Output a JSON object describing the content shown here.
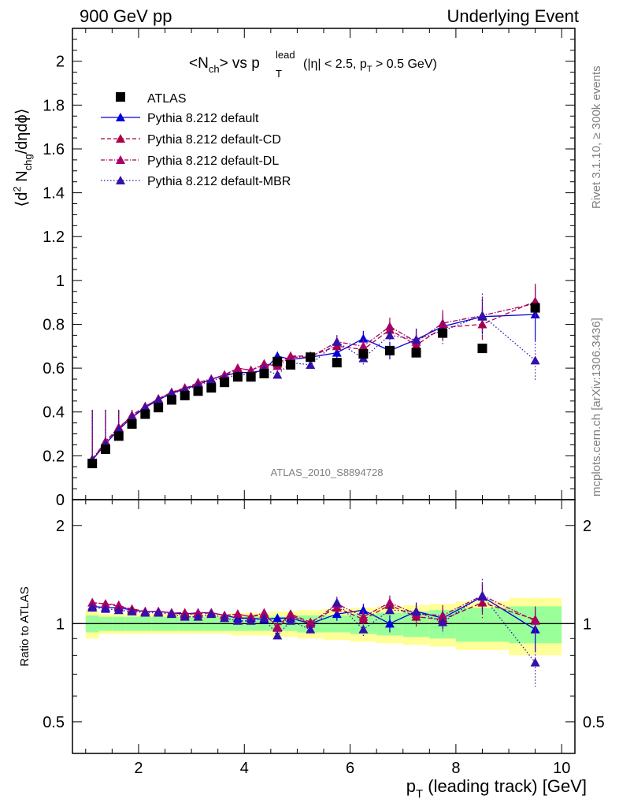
{
  "header": {
    "left": "900 GeV pp",
    "right": "Underlying Event"
  },
  "side_notes": {
    "rivet": "Rivet 3.1.10, ≥ 300k events",
    "mcplots": "mcplots.cern.ch [arXiv:1306.3436]"
  },
  "plot_title": {
    "n": "<N",
    "ch": "ch",
    "vs": "> vs p",
    "sup": "lead",
    "sub": "T",
    "cut1": "(|η| < 2.5, p",
    "cut_sub": "T",
    "cut2": " > 0.5 GeV)"
  },
  "ylabel_main": {
    "a": "⟨d",
    "b": "2",
    "c": " N",
    "d": "chg",
    "e": "/dηdϕ⟩"
  },
  "ylabel_ratio": "Ratio to ATLAS",
  "xlabel": {
    "p": "p",
    "sub": "T",
    "rest": " (leading track) [GeV]"
  },
  "analysis_tag": "ATLAS_2010_S8894728",
  "colors": {
    "data": "#000000",
    "default": "#0000dd",
    "cd": "#aa0044",
    "dl": "#aa0066",
    "mbr": "#3311aa",
    "band_inner": "#99ff99",
    "band_outer": "#ffff99"
  },
  "chart_data": [
    {
      "type": "scatter",
      "panel": "main",
      "xlim": [
        0.75,
        10.25
      ],
      "ylim": [
        0,
        2.15
      ],
      "xticks": [
        2,
        4,
        6,
        8,
        10
      ],
      "yticks": [
        0,
        0.2,
        0.4,
        0.6,
        0.8,
        1,
        1.2,
        1.4,
        1.6,
        1.8,
        2
      ],
      "ytick_labels": [
        "0",
        "0.2",
        "0.4",
        "0.6",
        "0.8",
        "1",
        "1.2",
        "1.4",
        "1.6",
        "1.8",
        "2"
      ],
      "x": [
        1.125,
        1.375,
        1.625,
        1.875,
        2.125,
        2.375,
        2.625,
        2.875,
        3.125,
        3.375,
        3.625,
        3.875,
        4.125,
        4.375,
        4.625,
        4.875,
        5.25,
        5.75,
        6.25,
        6.75,
        7.25,
        7.75,
        8.5,
        9.5
      ],
      "series": [
        {
          "name": "ATLAS",
          "style": "data",
          "legend": "ATLAS",
          "values": [
            0.165,
            0.23,
            0.29,
            0.345,
            0.39,
            0.42,
            0.455,
            0.475,
            0.495,
            0.51,
            0.535,
            0.56,
            0.56,
            0.575,
            0.63,
            0.615,
            0.65,
            0.625,
            0.665,
            0.68,
            0.67,
            0.76,
            0.69,
            0.875
          ]
        },
        {
          "name": "default",
          "style": "default",
          "legend": "Pythia 8.212 default",
          "values": [
            0.18,
            0.255,
            0.32,
            0.375,
            0.42,
            0.455,
            0.485,
            0.505,
            0.525,
            0.55,
            0.565,
            0.58,
            0.58,
            0.59,
            0.655,
            0.64,
            0.65,
            0.67,
            0.735,
            0.68,
            0.73,
            0.79,
            0.835,
            0.845
          ],
          "errors": [
            0.005,
            0.005,
            0.005,
            0.005,
            0.005,
            0.005,
            0.005,
            0.005,
            0.005,
            0.007,
            0.008,
            0.01,
            0.012,
            0.015,
            0.02,
            0.02,
            0.02,
            0.03,
            0.035,
            0.04,
            0.05,
            0.06,
            0.08,
            0.12
          ]
        },
        {
          "name": "default-CD",
          "style": "cd",
          "legend": "Pythia 8.212 default-CD",
          "values": [
            0.18,
            0.265,
            0.325,
            0.385,
            0.425,
            0.46,
            0.49,
            0.51,
            0.525,
            0.55,
            0.565,
            0.6,
            0.59,
            0.615,
            0.62,
            0.655,
            0.655,
            0.7,
            0.685,
            0.775,
            0.705,
            0.785,
            0.8,
            0.905
          ],
          "errors": [
            0.005,
            0.005,
            0.005,
            0.005,
            0.005,
            0.005,
            0.005,
            0.005,
            0.005,
            0.007,
            0.008,
            0.01,
            0.012,
            0.015,
            0.02,
            0.02,
            0.02,
            0.03,
            0.035,
            0.04,
            0.05,
            0.06,
            0.08,
            0.08
          ]
        },
        {
          "name": "default-DL",
          "style": "dl",
          "legend": "Pythia 8.212 default-DL",
          "values": [
            0.185,
            0.265,
            0.33,
            0.38,
            0.425,
            0.46,
            0.49,
            0.505,
            0.535,
            0.55,
            0.57,
            0.6,
            0.59,
            0.62,
            0.61,
            0.65,
            0.65,
            0.72,
            0.7,
            0.79,
            0.72,
            0.805,
            0.84,
            0.895
          ],
          "errors": [
            0.005,
            0.005,
            0.005,
            0.005,
            0.005,
            0.005,
            0.005,
            0.005,
            0.005,
            0.007,
            0.008,
            0.01,
            0.012,
            0.015,
            0.02,
            0.02,
            0.02,
            0.03,
            0.035,
            0.04,
            0.05,
            0.06,
            0.08,
            0.08
          ]
        },
        {
          "name": "default-MBR",
          "style": "mbr",
          "legend": "Pythia 8.212 default-MBR",
          "values": [
            0.18,
            0.255,
            0.32,
            0.375,
            0.42,
            0.455,
            0.485,
            0.5,
            0.52,
            0.545,
            0.555,
            0.57,
            0.57,
            0.595,
            0.57,
            0.625,
            0.615,
            0.72,
            0.645,
            0.75,
            0.73,
            0.77,
            0.84,
            0.635
          ],
          "errors": [
            0.005,
            0.005,
            0.005,
            0.005,
            0.005,
            0.005,
            0.005,
            0.005,
            0.005,
            0.007,
            0.008,
            0.01,
            0.012,
            0.015,
            0.02,
            0.02,
            0.02,
            0.03,
            0.035,
            0.04,
            0.05,
            0.06,
            0.1,
            0.09
          ]
        }
      ]
    },
    {
      "type": "scatter",
      "panel": "ratio",
      "xlim": [
        0.75,
        10.25
      ],
      "ylim": [
        0.4,
        2.4
      ],
      "yscale": "log",
      "reference": 1,
      "yticks": [
        0.5,
        1,
        2
      ],
      "ytick_labels": [
        "0.5",
        "1",
        "2"
      ],
      "x_edges": [
        1.0,
        1.25,
        1.5,
        1.75,
        2.0,
        2.25,
        2.5,
        2.75,
        3.0,
        3.25,
        3.5,
        3.75,
        4.0,
        4.25,
        4.5,
        4.75,
        5.0,
        5.5,
        6.0,
        6.5,
        7.0,
        7.5,
        8.0,
        9.0,
        10.0
      ],
      "band_inner": [
        0.06,
        0.05,
        0.05,
        0.05,
        0.05,
        0.05,
        0.05,
        0.05,
        0.05,
        0.05,
        0.05,
        0.05,
        0.05,
        0.05,
        0.05,
        0.05,
        0.06,
        0.06,
        0.07,
        0.08,
        0.09,
        0.1,
        0.12,
        0.13
      ],
      "band_outer": [
        0.1,
        0.07,
        0.07,
        0.07,
        0.07,
        0.07,
        0.07,
        0.07,
        0.07,
        0.07,
        0.07,
        0.08,
        0.08,
        0.08,
        0.09,
        0.09,
        0.1,
        0.11,
        0.12,
        0.13,
        0.14,
        0.15,
        0.17,
        0.2
      ],
      "series": [
        {
          "name": "default",
          "style": "default",
          "values": [
            1.13,
            1.12,
            1.12,
            1.1,
            1.09,
            1.09,
            1.08,
            1.07,
            1.08,
            1.08,
            1.06,
            1.04,
            1.04,
            1.03,
            1.04,
            1.04,
            1.0,
            1.07,
            1.1,
            1.0,
            1.09,
            1.04,
            1.21,
            0.96
          ],
          "errors": [
            0.01,
            0.01,
            0.01,
            0.01,
            0.01,
            0.01,
            0.01,
            0.01,
            0.01,
            0.01,
            0.015,
            0.02,
            0.02,
            0.03,
            0.03,
            0.03,
            0.03,
            0.05,
            0.05,
            0.06,
            0.07,
            0.08,
            0.12,
            0.14
          ]
        },
        {
          "name": "default-CD",
          "style": "cd",
          "values": [
            1.16,
            1.15,
            1.13,
            1.11,
            1.09,
            1.09,
            1.08,
            1.08,
            1.07,
            1.08,
            1.06,
            1.07,
            1.05,
            1.07,
            0.98,
            1.07,
            1.01,
            1.12,
            1.03,
            1.14,
            1.05,
            1.03,
            1.16,
            1.03
          ],
          "errors": [
            0.01,
            0.01,
            0.01,
            0.01,
            0.01,
            0.01,
            0.01,
            0.01,
            0.01,
            0.01,
            0.015,
            0.02,
            0.02,
            0.03,
            0.03,
            0.03,
            0.03,
            0.05,
            0.05,
            0.06,
            0.07,
            0.08,
            0.12,
            0.1
          ]
        },
        {
          "name": "default-DL",
          "style": "dl",
          "values": [
            1.16,
            1.15,
            1.14,
            1.1,
            1.09,
            1.09,
            1.08,
            1.06,
            1.08,
            1.08,
            1.06,
            1.07,
            1.05,
            1.08,
            0.97,
            1.06,
            1.0,
            1.15,
            1.05,
            1.16,
            1.07,
            1.06,
            1.22,
            1.02
          ],
          "errors": [
            0.01,
            0.01,
            0.01,
            0.01,
            0.01,
            0.01,
            0.01,
            0.01,
            0.01,
            0.01,
            0.015,
            0.02,
            0.02,
            0.03,
            0.03,
            0.03,
            0.03,
            0.05,
            0.05,
            0.06,
            0.07,
            0.08,
            0.12,
            0.1
          ]
        },
        {
          "name": "default-MBR",
          "style": "mbr",
          "values": [
            1.12,
            1.11,
            1.1,
            1.09,
            1.08,
            1.08,
            1.07,
            1.05,
            1.05,
            1.07,
            1.04,
            1.02,
            1.02,
            1.04,
            0.92,
            1.02,
            0.96,
            1.16,
            0.96,
            1.1,
            1.09,
            1.01,
            1.22,
            0.76
          ],
          "errors": [
            0.01,
            0.01,
            0.01,
            0.01,
            0.01,
            0.01,
            0.01,
            0.01,
            0.01,
            0.01,
            0.015,
            0.02,
            0.02,
            0.03,
            0.03,
            0.03,
            0.03,
            0.05,
            0.05,
            0.06,
            0.07,
            0.08,
            0.15,
            0.12
          ]
        }
      ]
    }
  ]
}
